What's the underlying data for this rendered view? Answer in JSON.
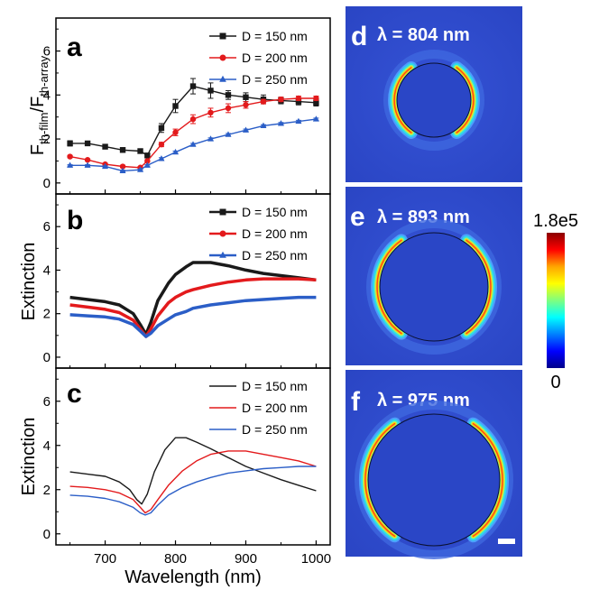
{
  "chart_data": [
    {
      "panel": "a",
      "type": "line",
      "ylabel_main": "F",
      "ylabel_sub1": "th-film",
      "ylabel_mid": "/F",
      "ylabel_sub2": "th-array",
      "ylim": [
        -0.5,
        7.5
      ],
      "yticks": [
        "0",
        "2",
        "4",
        "6"
      ],
      "legend_position": "top-right",
      "series": [
        {
          "name": "D = 150 nm",
          "color": "#1a1a1a",
          "marker": "square",
          "x": [
            650,
            675,
            700,
            725,
            750,
            760,
            780,
            800,
            825,
            850,
            875,
            900,
            925,
            950,
            975,
            1000
          ],
          "y": [
            1.8,
            1.8,
            1.65,
            1.5,
            1.45,
            1.25,
            2.5,
            3.5,
            4.4,
            4.2,
            4.0,
            3.9,
            3.8,
            3.75,
            3.7,
            3.65
          ],
          "err": [
            0.12,
            0.1,
            0.1,
            0.1,
            0.1,
            0.1,
            0.2,
            0.3,
            0.35,
            0.35,
            0.2,
            0.2,
            0.2,
            0.15,
            0.15,
            0.15
          ]
        },
        {
          "name": "D = 200 nm",
          "color": "#e31a1c",
          "marker": "circle",
          "x": [
            650,
            675,
            700,
            725,
            750,
            760,
            780,
            800,
            825,
            850,
            875,
            900,
            925,
            950,
            975,
            1000
          ],
          "y": [
            1.2,
            1.05,
            0.85,
            0.75,
            0.7,
            1.0,
            1.75,
            2.3,
            2.9,
            3.2,
            3.4,
            3.55,
            3.7,
            3.8,
            3.85,
            3.85
          ],
          "err": [
            0.05,
            0.05,
            0.05,
            0.05,
            0.05,
            0.05,
            0.1,
            0.15,
            0.2,
            0.2,
            0.2,
            0.15,
            0.1,
            0.1,
            0.1,
            0.1
          ]
        },
        {
          "name": "D = 250 nm",
          "color": "#2b5ec7",
          "marker": "triangle",
          "x": [
            650,
            675,
            700,
            725,
            750,
            760,
            780,
            800,
            825,
            850,
            875,
            900,
            925,
            950,
            975,
            1000
          ],
          "y": [
            0.8,
            0.8,
            0.75,
            0.55,
            0.6,
            0.8,
            1.1,
            1.4,
            1.75,
            2.0,
            2.2,
            2.4,
            2.6,
            2.7,
            2.8,
            2.9
          ],
          "err": [
            0.03,
            0.03,
            0.03,
            0.03,
            0.03,
            0.03,
            0.05,
            0.05,
            0.05,
            0.05,
            0.05,
            0.05,
            0.05,
            0.05,
            0.05,
            0.05
          ]
        }
      ]
    },
    {
      "panel": "b",
      "type": "line",
      "ylabel": "Extinction",
      "ylim": [
        -0.5,
        7.5
      ],
      "yticks": [
        "0",
        "2",
        "4",
        "6"
      ],
      "legend_position": "top-right",
      "series": [
        {
          "name": "D = 150 nm",
          "color": "#1a1a1a",
          "marker": "square",
          "x": [
            650,
            675,
            700,
            720,
            740,
            750,
            758,
            765,
            775,
            790,
            800,
            815,
            825,
            850,
            875,
            900,
            925,
            950,
            975,
            1000
          ],
          "y": [
            2.75,
            2.65,
            2.55,
            2.4,
            2.0,
            1.5,
            1.05,
            1.6,
            2.6,
            3.4,
            3.8,
            4.15,
            4.35,
            4.35,
            4.2,
            4.0,
            3.85,
            3.75,
            3.65,
            3.55
          ]
        },
        {
          "name": "D = 200 nm",
          "color": "#e31a1c",
          "marker": "circle",
          "x": [
            650,
            675,
            700,
            720,
            740,
            750,
            758,
            765,
            775,
            790,
            800,
            815,
            825,
            850,
            875,
            900,
            925,
            950,
            975,
            1000
          ],
          "y": [
            2.4,
            2.3,
            2.2,
            2.05,
            1.7,
            1.3,
            0.95,
            1.3,
            1.9,
            2.5,
            2.75,
            3.0,
            3.1,
            3.3,
            3.45,
            3.55,
            3.6,
            3.6,
            3.6,
            3.55
          ]
        },
        {
          "name": "D = 250 nm",
          "color": "#2b5ec7",
          "marker": "triangle",
          "x": [
            650,
            675,
            700,
            720,
            740,
            750,
            758,
            765,
            775,
            790,
            800,
            815,
            825,
            850,
            875,
            900,
            925,
            950,
            975,
            1000
          ],
          "y": [
            1.95,
            1.9,
            1.85,
            1.75,
            1.5,
            1.2,
            0.95,
            1.1,
            1.45,
            1.75,
            1.95,
            2.1,
            2.25,
            2.4,
            2.5,
            2.6,
            2.65,
            2.7,
            2.75,
            2.75
          ]
        }
      ]
    },
    {
      "panel": "c",
      "type": "line",
      "ylabel": "Extinction",
      "xlabel": "Wavelength (nm)",
      "xlim": [
        630,
        1020
      ],
      "ylim": [
        -0.5,
        7.5
      ],
      "xticks": [
        "700",
        "800",
        "900",
        "1000"
      ],
      "yticks": [
        "0",
        "2",
        "4",
        "6"
      ],
      "legend_position": "top-right",
      "series": [
        {
          "name": "D = 150 nm",
          "color": "#1a1a1a",
          "x": [
            650,
            675,
            700,
            720,
            735,
            745,
            752,
            760,
            770,
            785,
            800,
            815,
            830,
            850,
            875,
            900,
            925,
            950,
            975,
            1000
          ],
          "y": [
            2.8,
            2.7,
            2.6,
            2.35,
            2.0,
            1.55,
            1.35,
            1.8,
            2.8,
            3.8,
            4.35,
            4.35,
            4.15,
            3.85,
            3.45,
            3.05,
            2.75,
            2.45,
            2.2,
            1.95
          ]
        },
        {
          "name": "D = 200 nm",
          "color": "#e31a1c",
          "x": [
            650,
            675,
            700,
            720,
            740,
            750,
            757,
            765,
            775,
            790,
            810,
            830,
            850,
            875,
            900,
            925,
            950,
            975,
            1000
          ],
          "y": [
            2.15,
            2.1,
            2.0,
            1.85,
            1.55,
            1.2,
            0.95,
            1.1,
            1.55,
            2.2,
            2.85,
            3.3,
            3.6,
            3.75,
            3.75,
            3.6,
            3.45,
            3.3,
            3.05
          ]
        },
        {
          "name": "D = 250 nm",
          "color": "#2b5ec7",
          "x": [
            650,
            675,
            700,
            720,
            740,
            750,
            757,
            765,
            775,
            790,
            810,
            830,
            850,
            875,
            900,
            925,
            950,
            975,
            1000
          ],
          "y": [
            1.75,
            1.7,
            1.6,
            1.45,
            1.2,
            0.95,
            0.85,
            0.95,
            1.3,
            1.75,
            2.1,
            2.35,
            2.55,
            2.75,
            2.85,
            2.95,
            3.0,
            3.05,
            3.05
          ]
        }
      ]
    }
  ],
  "field_maps": [
    {
      "panel": "d",
      "label": "λ = 804 nm"
    },
    {
      "panel": "e",
      "label": "λ = 893 nm"
    },
    {
      "panel": "f",
      "label": "λ = 975 nm"
    }
  ],
  "colorbar": {
    "max_label": "1.8e5",
    "min_label": "0",
    "colors": [
      "#8b0000",
      "#ff0000",
      "#ffa500",
      "#ffff00",
      "#7fff7f",
      "#00ffff",
      "#0080ff",
      "#0000ff",
      "#00008b"
    ]
  },
  "colors": {
    "map_background": "#2c48c8",
    "map_background_dark": "#1a2fa8"
  }
}
